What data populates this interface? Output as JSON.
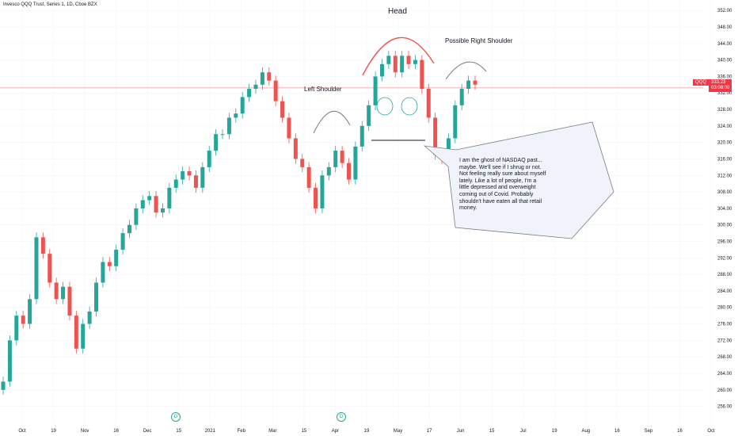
{
  "title": "Invesco QQQ Trust, Series 1, 1D, Cboe BZX",
  "colors": {
    "up": "#26a69a",
    "down": "#ef5350",
    "current_line": "#f23645",
    "grid": "#f0f3fa",
    "axis_text": "#131722"
  },
  "dividend_badge": "D",
  "price_tag": {
    "ticker": "QQQ",
    "price": "333.23",
    "countdown": "03:08:00"
  },
  "annotations": {
    "head": "Head",
    "left_shoulder": "Left Shoulder",
    "right_shoulder": "Possible Right Shoulder",
    "callout": "I am the ghost of NASDAQ past... maybe. We'll see if I shrug or not. Not feeling really sure about myself lately. Like a lot of people, I'm a little depressed and overweight coming out of Covid. Probably shouldn't have eaten all that retail money."
  },
  "chart_data": {
    "type": "candlestick",
    "title": "",
    "x_ticks": [
      "Oct",
      "19",
      "Nov",
      "16",
      "Dec",
      "15",
      "2021",
      "Feb",
      "Mar",
      "15",
      "Apr",
      "19",
      "May",
      "17",
      "Jun",
      "15",
      "Jul",
      "19",
      "Aug",
      "16",
      "Sep",
      "16",
      "Oct"
    ],
    "y_ticks": [
      256,
      260,
      264,
      268,
      272,
      276,
      280,
      284,
      288,
      292,
      296,
      300,
      304,
      308,
      312,
      316,
      320,
      324,
      328,
      332,
      336,
      340,
      344,
      348,
      352
    ],
    "ylim": [
      254,
      353
    ],
    "current_price": 333.23,
    "neckline": 320,
    "close_series": [
      262,
      272,
      278,
      276,
      282,
      297,
      293,
      286,
      282,
      285,
      278,
      270,
      276,
      279,
      286,
      291,
      290,
      294,
      298,
      300,
      304,
      306,
      307,
      303,
      304,
      309,
      311,
      313,
      312,
      309,
      314,
      318,
      322,
      322,
      326,
      327,
      331,
      333,
      334,
      337,
      335,
      330,
      326,
      321,
      316,
      314,
      309,
      304,
      312,
      314,
      318,
      315,
      311,
      319,
      324,
      329,
      336,
      339,
      341,
      337,
      341,
      339,
      340,
      333,
      326,
      317,
      316,
      321,
      329,
      333,
      335,
      334
    ]
  }
}
